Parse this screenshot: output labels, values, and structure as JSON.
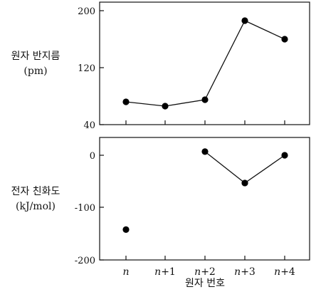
{
  "chart_data": [
    {
      "type": "line",
      "ylabel": [
        "원자 반지름",
        "(pm)"
      ],
      "categories": [
        "n",
        "n+1",
        "n+2",
        "n+3",
        "n+4"
      ],
      "series": [
        {
          "values": [
            72,
            66,
            75,
            186,
            160
          ]
        }
      ],
      "ylim": [
        40,
        210
      ],
      "yticks": [
        40,
        120,
        200
      ],
      "grid": false
    },
    {
      "type": "line",
      "ylabel": [
        "전자 친화도",
        "(kJ/mol)"
      ],
      "xlabel": "원자 번호",
      "categories": [
        "n",
        "n+1",
        "n+2",
        "n+3",
        "n+4"
      ],
      "series": [
        {
          "values": [
            -142,
            null,
            7,
            -53,
            0
          ],
          "connect_from": 2
        }
      ],
      "ylim": [
        -200,
        20
      ],
      "yticks": [
        0,
        -100,
        -200
      ],
      "grid": false
    }
  ],
  "colors": {
    "line": "#111111",
    "marker": "#000000"
  }
}
